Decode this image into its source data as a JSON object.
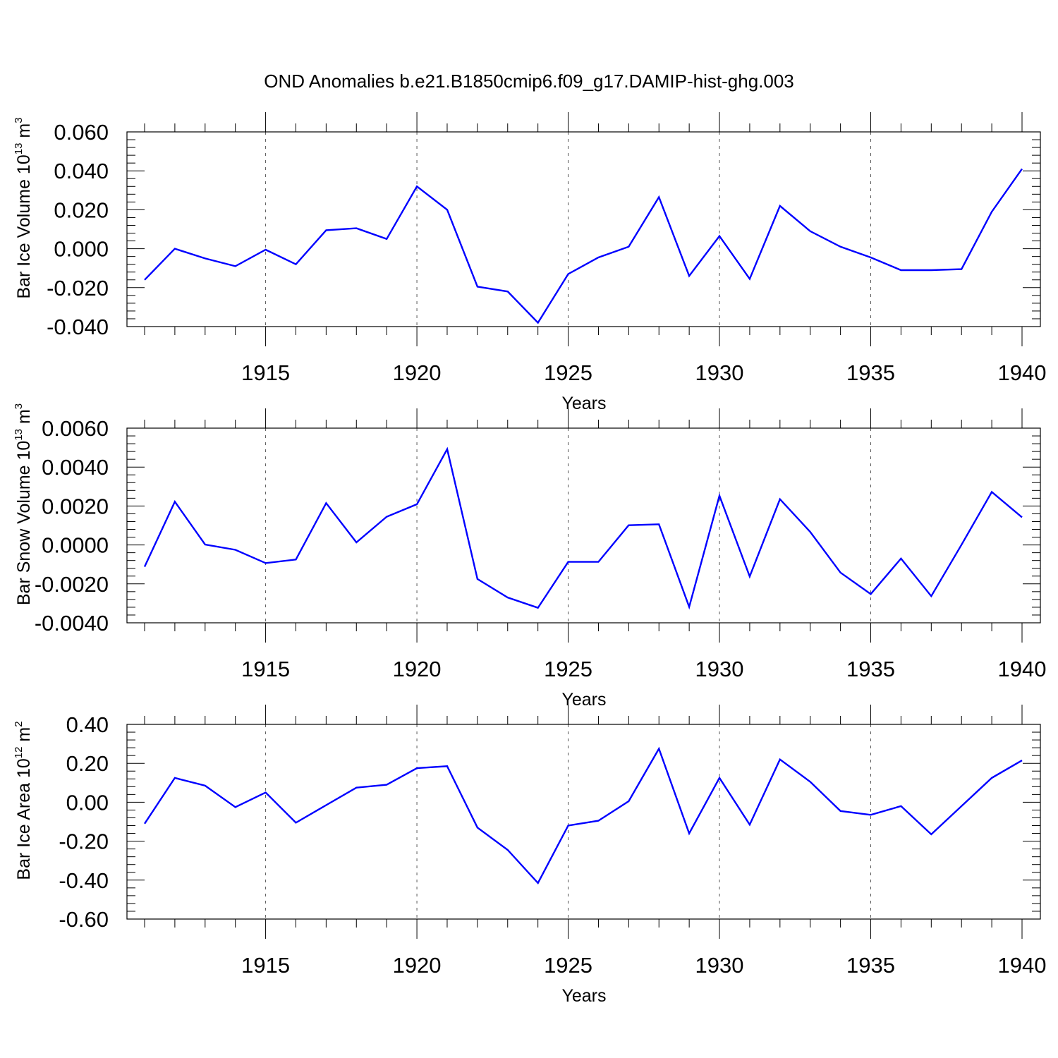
{
  "title": "OND Anomalies b.e21.B1850cmip6.f09_g17.DAMIP-hist-ghg.003",
  "colors": {
    "series": "#0000ff",
    "axis": "#000000",
    "grid": "#555555"
  },
  "chart_data": [
    {
      "type": "line",
      "name": "ice-volume",
      "ylabel": {
        "base": "Bar Ice Volume 10",
        "exp1": "13",
        "unit": " m",
        "exp2": "3"
      },
      "xlabel": "Years",
      "xlim": [
        1911,
        1940
      ],
      "ylim": [
        -0.04,
        0.06
      ],
      "ytick_values": [
        -0.04,
        -0.02,
        0.0,
        0.02,
        0.04,
        0.06
      ],
      "ytick_labels": [
        "-0.040",
        "-0.020",
        "0.000",
        "0.020",
        "0.040",
        "0.060"
      ],
      "xtick_values": [
        1915,
        1920,
        1925,
        1930,
        1935,
        1940
      ],
      "xtick_labels": [
        "1915",
        "1920",
        "1925",
        "1930",
        "1935",
        "1940"
      ],
      "grid": "vertical dashed at major x ticks",
      "x": [
        1911,
        1912,
        1913,
        1914,
        1915,
        1916,
        1917,
        1918,
        1919,
        1920,
        1921,
        1922,
        1923,
        1924,
        1925,
        1926,
        1927,
        1928,
        1929,
        1930,
        1931,
        1932,
        1933,
        1934,
        1935,
        1936,
        1937,
        1938,
        1939,
        1940
      ],
      "values": [
        -0.016,
        0.0,
        -0.005,
        -0.009,
        -0.0005,
        -0.008,
        0.0095,
        0.0105,
        0.005,
        0.032,
        0.02,
        -0.0195,
        -0.022,
        -0.038,
        -0.013,
        -0.0045,
        0.001,
        0.0265,
        -0.014,
        0.0065,
        -0.0155,
        0.022,
        0.009,
        0.001,
        -0.0045,
        -0.011,
        -0.011,
        -0.0105,
        0.019,
        0.041
      ]
    },
    {
      "type": "line",
      "name": "snow-volume",
      "ylabel": {
        "base": "Bar Snow Volume 10",
        "exp1": "13",
        "unit": " m",
        "exp2": "3"
      },
      "xlabel": "Years",
      "xlim": [
        1911,
        1940
      ],
      "ylim": [
        -0.004,
        0.006
      ],
      "ytick_values": [
        -0.004,
        -0.002,
        0.0,
        0.002,
        0.004,
        0.006
      ],
      "ytick_labels": [
        "-0.0040",
        "-0.0020",
        "0.0000",
        "0.0020",
        "0.0040",
        "0.0060"
      ],
      "xtick_values": [
        1915,
        1920,
        1925,
        1930,
        1935,
        1940
      ],
      "xtick_labels": [
        "1915",
        "1920",
        "1925",
        "1930",
        "1935",
        "1940"
      ],
      "grid": "vertical dashed at major x ticks",
      "x": [
        1911,
        1912,
        1913,
        1914,
        1915,
        1916,
        1917,
        1918,
        1919,
        1920,
        1921,
        1922,
        1923,
        1924,
        1925,
        1926,
        1927,
        1928,
        1929,
        1930,
        1931,
        1932,
        1933,
        1934,
        1935,
        1936,
        1937,
        1938,
        1939,
        1940
      ],
      "values": [
        -0.00112,
        0.00222,
        2e-05,
        -0.00025,
        -0.00093,
        -0.00075,
        0.00215,
        0.00013,
        0.00145,
        0.00209,
        0.00492,
        -0.00175,
        -0.0027,
        -0.00323,
        -0.00087,
        -0.00087,
        0.00101,
        0.00106,
        -0.00318,
        0.00253,
        -0.00162,
        0.00235,
        0.00067,
        -0.00142,
        -0.00252,
        -0.0007,
        -0.00263,
        1e-05,
        0.00272,
        0.00142
      ]
    },
    {
      "type": "line",
      "name": "ice-area",
      "ylabel": {
        "base": "Bar Ice Area 10",
        "exp1": "12",
        "unit": " m",
        "exp2": "2"
      },
      "xlabel": "Years",
      "xlim": [
        1911,
        1940
      ],
      "ylim": [
        -0.6,
        0.4
      ],
      "ytick_values": [
        -0.6,
        -0.4,
        -0.2,
        0.0,
        0.2,
        0.4
      ],
      "ytick_labels": [
        "-0.60",
        "-0.40",
        "-0.20",
        "0.00",
        "0.20",
        "0.40"
      ],
      "xtick_values": [
        1915,
        1920,
        1925,
        1930,
        1935,
        1940
      ],
      "xtick_labels": [
        "1915",
        "1920",
        "1925",
        "1930",
        "1935",
        "1940"
      ],
      "grid": "vertical dashed at major x ticks",
      "x": [
        1911,
        1912,
        1913,
        1914,
        1915,
        1916,
        1917,
        1918,
        1919,
        1920,
        1921,
        1922,
        1923,
        1924,
        1925,
        1926,
        1927,
        1928,
        1929,
        1930,
        1931,
        1932,
        1933,
        1934,
        1935,
        1936,
        1937,
        1938,
        1939,
        1940
      ],
      "values": [
        -0.11,
        0.125,
        0.085,
        -0.025,
        0.05,
        -0.105,
        -0.015,
        0.075,
        0.09,
        0.175,
        0.185,
        -0.13,
        -0.245,
        -0.415,
        -0.12,
        -0.095,
        0.005,
        0.275,
        -0.16,
        0.125,
        -0.115,
        0.22,
        0.105,
        -0.045,
        -0.065,
        -0.02,
        -0.165,
        -0.02,
        0.125,
        0.215
      ]
    }
  ]
}
